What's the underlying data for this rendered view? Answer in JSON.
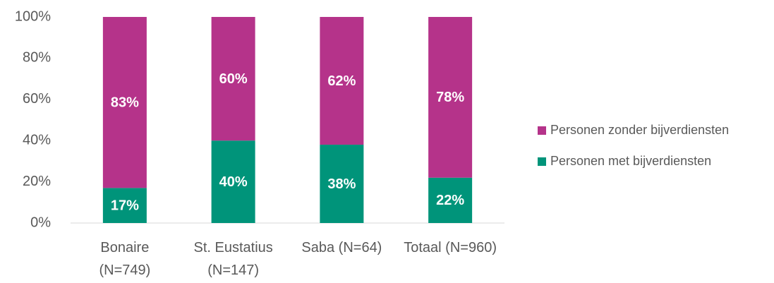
{
  "chart_data": {
    "type": "stacked_bar",
    "categories": [
      "Bonaire (N=749)",
      "St. Eustatius (N=147)",
      "Saba (N=64)",
      "Totaal (N=960)"
    ],
    "series": [
      {
        "name": "Personen met bijverdiensten",
        "color": "#00947a",
        "values": [
          17,
          40,
          38,
          22
        ],
        "value_labels": [
          "17%",
          "40%",
          "38%",
          "22%"
        ]
      },
      {
        "name": "Personen zonder bijverdiensten",
        "color": "#b5338a",
        "values": [
          83,
          60,
          62,
          78
        ],
        "value_labels": [
          "83%",
          "60%",
          "62%",
          "78%"
        ]
      }
    ],
    "ylim": [
      0,
      100
    ],
    "yticks": [
      {
        "value": 0,
        "label": "0%"
      },
      {
        "value": 20,
        "label": "20%"
      },
      {
        "value": 40,
        "label": "40%"
      },
      {
        "value": 60,
        "label": "60%"
      },
      {
        "value": 80,
        "label": "80%"
      },
      {
        "value": 100,
        "label": "100%"
      }
    ],
    "legend": "right"
  }
}
